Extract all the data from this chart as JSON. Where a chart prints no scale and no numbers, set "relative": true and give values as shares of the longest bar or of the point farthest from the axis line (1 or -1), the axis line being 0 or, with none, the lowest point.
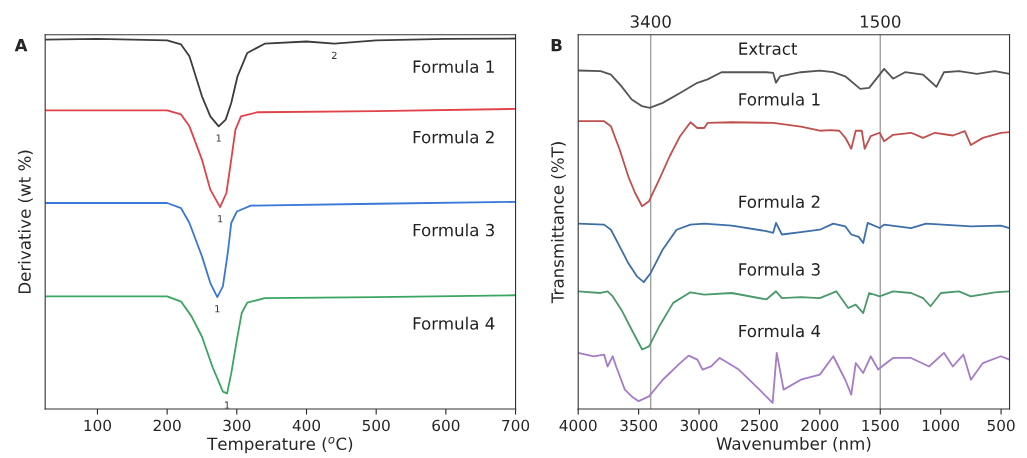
{
  "chart_data": [
    {
      "type": "line",
      "title": "A",
      "xlabel": "Temperature ($^{o}$C)",
      "ylabel": "Derivative (wt %)",
      "relative": true,
      "xlim": [
        25,
        700
      ],
      "xticks": [
        100,
        200,
        300,
        400,
        500,
        600,
        700
      ],
      "line_style": "solid",
      "series": [
        {
          "name": "Formula 1",
          "color": "#3d3d3d",
          "x": [
            25,
            100,
            200,
            220,
            232,
            250,
            262,
            274,
            284,
            292,
            301,
            315,
            340,
            400,
            440,
            500,
            600,
            700
          ],
          "values": [
            0.997,
            0.999,
            0.995,
            0.984,
            0.952,
            0.844,
            0.79,
            0.763,
            0.781,
            0.826,
            0.898,
            0.961,
            0.986,
            0.992,
            0.986,
            0.995,
            0.999,
            1.0
          ]
        },
        {
          "name": "Formula 2",
          "color": "#e0434a",
          "x": [
            25,
            200,
            220,
            232,
            250,
            262,
            276,
            285,
            292,
            298,
            306,
            330,
            500,
            700
          ],
          "values": [
            0.806,
            0.806,
            0.795,
            0.763,
            0.673,
            0.592,
            0.545,
            0.583,
            0.673,
            0.754,
            0.79,
            0.801,
            0.804,
            0.81
          ]
        },
        {
          "name": "Formula 3",
          "color": "#3a78d8",
          "x": [
            25,
            200,
            220,
            232,
            250,
            262,
            272,
            280,
            287,
            292,
            300,
            320,
            500,
            700
          ],
          "values": [
            0.556,
            0.556,
            0.542,
            0.502,
            0.412,
            0.34,
            0.302,
            0.331,
            0.421,
            0.502,
            0.533,
            0.549,
            0.554,
            0.559
          ]
        },
        {
          "name": "Formula 4",
          "color": "#3aa661",
          "x": [
            25,
            200,
            220,
            235,
            250,
            265,
            280,
            286,
            292,
            300,
            307,
            315,
            340,
            500,
            700
          ],
          "values": [
            0.304,
            0.304,
            0.29,
            0.25,
            0.195,
            0.114,
            0.047,
            0.042,
            0.096,
            0.186,
            0.259,
            0.287,
            0.299,
            0.302,
            0.307
          ]
        }
      ],
      "annotations": [
        {
          "text": "1",
          "x": 274,
          "y": 0.763
        },
        {
          "text": "2",
          "x": 440,
          "y": 0.986
        },
        {
          "text": "1",
          "x": 276,
          "y": 0.545
        },
        {
          "text": "1",
          "x": 272,
          "y": 0.302
        },
        {
          "text": "1",
          "x": 286,
          "y": 0.042
        }
      ]
    },
    {
      "type": "line",
      "title": "B",
      "xlabel": "Wavenumber (nm)",
      "ylabel": "Transmittance (%T)",
      "relative": true,
      "xlim": [
        4000,
        430
      ],
      "xticks": [
        4000,
        3500,
        3000,
        2500,
        2000,
        1500,
        1000,
        500
      ],
      "line_style": "solid",
      "ref_lines": [
        {
          "axis": "x",
          "value": 3400,
          "label": "3400",
          "color": "#a0a0a0"
        },
        {
          "axis": "x",
          "value": 1500,
          "label": "1500",
          "color": "#a0a0a0"
        }
      ],
      "series": [
        {
          "name": "Extract",
          "color": "#555555",
          "x": [
            4000,
            3814,
            3729,
            3643,
            3557,
            3471,
            3409,
            3300,
            3157,
            3014,
            2929,
            2814,
            2671,
            2443,
            2386,
            2363,
            2329,
            2157,
            2000,
            1889,
            1790,
            1666,
            1592,
            1505,
            1468,
            1394,
            1295,
            1146,
            1072,
            1035,
            973,
            849,
            700,
            552,
            430
          ],
          "values": [
            0.995,
            0.993,
            0.983,
            0.949,
            0.91,
            0.89,
            0.885,
            0.9,
            0.929,
            0.959,
            0.969,
            0.99,
            0.99,
            0.99,
            0.988,
            0.959,
            0.978,
            0.99,
            0.995,
            0.99,
            0.978,
            0.941,
            0.944,
            0.983,
            1.0,
            0.971,
            0.99,
            0.983,
            0.959,
            0.947,
            0.99,
            0.993,
            0.985,
            0.993,
            0.985
          ]
        },
        {
          "name": "Formula 1",
          "color": "#c0504d",
          "x": [
            4000,
            3786,
            3729,
            3657,
            3586,
            3529,
            3471,
            3414,
            3329,
            3243,
            3157,
            3071,
            3014,
            2957,
            2929,
            2729,
            2386,
            2157,
            2000,
            1913,
            1839,
            1790,
            1740,
            1703,
            1653,
            1629,
            1579,
            1505,
            1468,
            1394,
            1245,
            1146,
            1047,
            899,
            800,
            750,
            651,
            502,
            430
          ],
          "values": [
            0.846,
            0.846,
            0.831,
            0.763,
            0.684,
            0.635,
            0.596,
            0.611,
            0.675,
            0.743,
            0.802,
            0.843,
            0.826,
            0.826,
            0.841,
            0.843,
            0.841,
            0.83,
            0.818,
            0.82,
            0.818,
            0.798,
            0.765,
            0.818,
            0.818,
            0.765,
            0.802,
            0.812,
            0.787,
            0.806,
            0.812,
            0.797,
            0.812,
            0.804,
            0.817,
            0.776,
            0.797,
            0.812,
            0.814
          ]
        },
        {
          "name": "Formula 2",
          "color": "#3d6fa8",
          "x": [
            4000,
            3786,
            3729,
            3657,
            3586,
            3514,
            3457,
            3400,
            3300,
            3186,
            3071,
            2957,
            2729,
            2443,
            2386,
            2363,
            2314,
            2157,
            2000,
            1889,
            1790,
            1740,
            1678,
            1641,
            1604,
            1505,
            1468,
            1245,
            1121,
            849,
            750,
            502,
            430
          ],
          "values": [
            0.545,
            0.542,
            0.527,
            0.478,
            0.429,
            0.39,
            0.373,
            0.4,
            0.469,
            0.527,
            0.542,
            0.545,
            0.539,
            0.523,
            0.518,
            0.547,
            0.513,
            0.52,
            0.527,
            0.545,
            0.537,
            0.513,
            0.506,
            0.488,
            0.547,
            0.532,
            0.542,
            0.532,
            0.545,
            0.539,
            0.537,
            0.539,
            0.532
          ]
        },
        {
          "name": "Formula 3",
          "color": "#4a9a6b",
          "x": [
            4000,
            3814,
            3757,
            3714,
            3643,
            3557,
            3471,
            3414,
            3329,
            3214,
            3071,
            2957,
            2729,
            2443,
            2363,
            2314,
            2157,
            2000,
            1864,
            1765,
            1703,
            1641,
            1592,
            1505,
            1394,
            1245,
            1146,
            1084,
            998,
            849,
            750,
            552,
            430
          ],
          "values": [
            0.346,
            0.341,
            0.346,
            0.331,
            0.292,
            0.233,
            0.175,
            0.184,
            0.243,
            0.312,
            0.343,
            0.336,
            0.341,
            0.322,
            0.346,
            0.326,
            0.329,
            0.326,
            0.346,
            0.297,
            0.307,
            0.282,
            0.341,
            0.331,
            0.346,
            0.341,
            0.326,
            0.302,
            0.341,
            0.346,
            0.331,
            0.343,
            0.346
          ]
        },
        {
          "name": "Formula 4",
          "color": "#a67cc8",
          "x": [
            4000,
            3871,
            3786,
            3757,
            3714,
            3686,
            3614,
            3557,
            3500,
            3414,
            3300,
            3157,
            3086,
            3014,
            2971,
            2900,
            2829,
            2671,
            2500,
            2391,
            2357,
            2300,
            2157,
            2000,
            1889,
            1790,
            1740,
            1703,
            1641,
            1579,
            1517,
            1468,
            1394,
            1245,
            1096,
            973,
            899,
            812,
            750,
            651,
            502,
            430
          ],
          "values": [
            0.165,
            0.155,
            0.16,
            0.125,
            0.155,
            0.125,
            0.057,
            0.037,
            0.023,
            0.037,
            0.086,
            0.135,
            0.157,
            0.145,
            0.116,
            0.125,
            0.15,
            0.116,
            0.057,
            0.018,
            0.165,
            0.057,
            0.086,
            0.101,
            0.155,
            0.086,
            0.042,
            0.135,
            0.106,
            0.155,
            0.116,
            0.13,
            0.15,
            0.15,
            0.125,
            0.165,
            0.125,
            0.16,
            0.086,
            0.135,
            0.155,
            0.145
          ]
        }
      ]
    }
  ]
}
